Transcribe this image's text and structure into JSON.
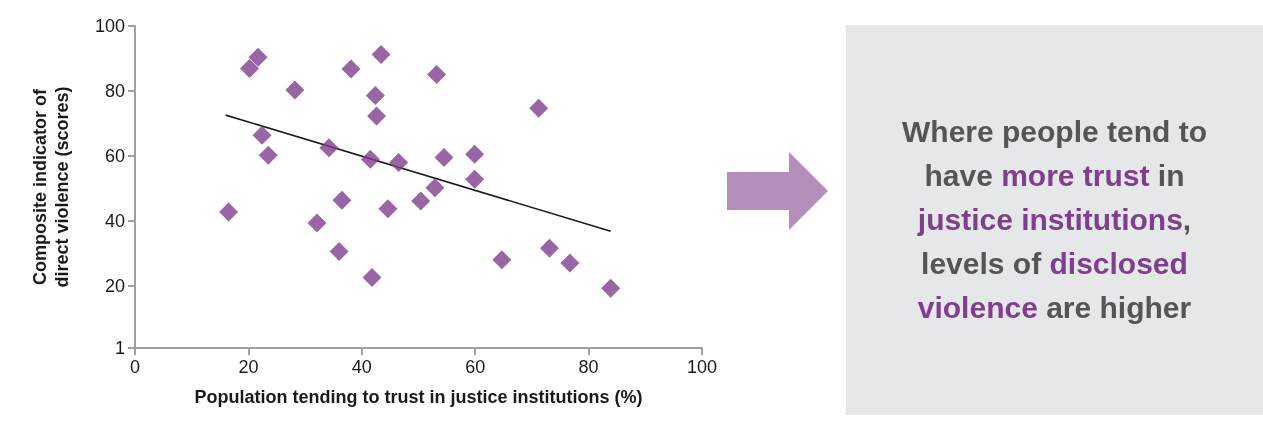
{
  "chart_data": [
    {
      "type": "scatter",
      "xlabel": "Population tending to trust in justice institutions (%)",
      "ylabel": "Composite indicator of\ndirect violence (scores)",
      "xlim": [
        0,
        100
      ],
      "xticks": [
        0,
        20,
        40,
        60,
        80,
        100
      ],
      "ylim": [
        1,
        100
      ],
      "yticks": [
        1,
        20,
        40,
        60,
        80,
        100
      ],
      "series": [
        {
          "type": "scatter",
          "marker": "diamond",
          "color": "#7f3f8f",
          "x": [
            16.5,
            20.2,
            21.7,
            28.2,
            22.4,
            23.5,
            34.2,
            32.1,
            36.5,
            36.0,
            38.1,
            43.4,
            42.4,
            42.6,
            41.5,
            46.5,
            44.6,
            41.8,
            50.4,
            53.2,
            71.2,
            54.5,
            59.9,
            59.9,
            52.9,
            64.7,
            73.1,
            76.7,
            83.9
          ],
          "values": [
            42.8,
            86.9,
            90.4,
            80.3,
            66.4,
            60.3,
            62.6,
            39.4,
            46.4,
            30.7,
            86.8,
            91.2,
            78.6,
            72.3,
            59.0,
            58.0,
            43.8,
            22.7,
            46.2,
            85.1,
            74.7,
            59.6,
            60.6,
            52.9,
            50.3,
            28.1,
            31.7,
            27.1,
            19.4
          ]
        },
        {
          "type": "line",
          "marker": "none",
          "color": "#1a1a1a",
          "x": [
            16.0,
            83.9
          ],
          "values": [
            72.6,
            36.9
          ]
        }
      ]
    },
    {
      "type": "other",
      "annotations": [
        "Where people tend to have ",
        "more trust",
        " in ",
        "justice institutions",
        ", levels of ",
        "disclosed violence",
        " are higher"
      ]
    }
  ]
}
